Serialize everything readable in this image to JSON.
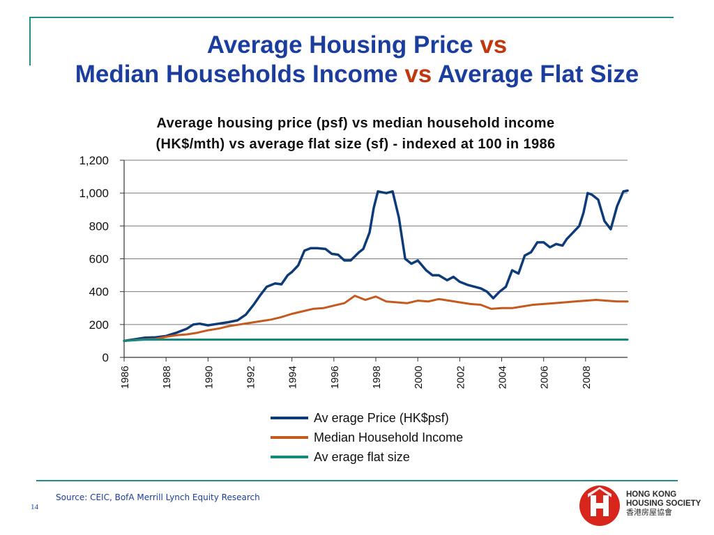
{
  "slide": {
    "title_part1": "Average Housing Price",
    "title_vs1": "vs",
    "title_part2": "Median Households Income",
    "title_vs2": "vs",
    "title_part3": "Average Flat Size",
    "page_number": "14",
    "source": "Source: CEIC, BofA Merrill Lynch Equity Research"
  },
  "logo": {
    "line1": "HONG KONG",
    "line2": "HOUSING SOCIETY",
    "line3": "香港房屋協會"
  },
  "colors": {
    "title_blue": "#1a3d9e",
    "vs_red": "#c0380f",
    "rule_teal": "#1f8f8a",
    "logo_red": "#d9261c"
  },
  "chart_data": {
    "type": "line",
    "title_line1": "Average housing price (psf) vs median household income",
    "title_line2": "(HK$/mth) vs average flat size (sf) - indexed at 100 in 1986",
    "ylim": [
      0,
      1200
    ],
    "yticks": [
      0,
      200,
      400,
      600,
      800,
      1000,
      1200
    ],
    "ytick_labels": [
      "0",
      "200",
      "400",
      "600",
      "800",
      "1,000",
      "1,200"
    ],
    "xlim": [
      1986,
      2010
    ],
    "xticks": [
      1986,
      1988,
      1990,
      1992,
      1994,
      1996,
      1998,
      2000,
      2002,
      2004,
      2006,
      2008
    ],
    "xtick_labels": [
      "1986",
      "1988",
      "1990",
      "1992",
      "1994",
      "1996",
      "1998",
      "2000",
      "2002",
      "2004",
      "2006",
      "2008"
    ],
    "grid": "horizontal",
    "legend_position": "bottom",
    "series": [
      {
        "name": "Av erage Price (HK$psf)",
        "color": "#0d3b78",
        "x": [
          1986.0,
          1986.5,
          1987.0,
          1987.5,
          1988.0,
          1988.5,
          1989.0,
          1989.3,
          1989.6,
          1990.0,
          1990.5,
          1991.0,
          1991.4,
          1991.8,
          1992.2,
          1992.5,
          1992.8,
          1993.2,
          1993.5,
          1993.8,
          1994.0,
          1994.3,
          1994.6,
          1994.9,
          1995.2,
          1995.6,
          1995.9,
          1996.2,
          1996.5,
          1996.8,
          1997.2,
          1997.4,
          1997.7,
          1997.9,
          1998.1,
          1998.5,
          1998.8,
          1999.1,
          1999.4,
          1999.7,
          2000.0,
          2000.4,
          2000.7,
          2001.0,
          2001.4,
          2001.7,
          2002.0,
          2002.4,
          2002.7,
          2003.0,
          2003.3,
          2003.6,
          2003.9,
          2004.2,
          2004.5,
          2004.8,
          2005.1,
          2005.4,
          2005.7,
          2006.0,
          2006.3,
          2006.6,
          2006.9,
          2007.1,
          2007.4,
          2007.7,
          2007.9,
          2008.1,
          2008.3,
          2008.6,
          2008.9,
          2009.2,
          2009.5,
          2009.8,
          2010.0
        ],
        "values": [
          100,
          110,
          120,
          122,
          130,
          150,
          175,
          200,
          205,
          195,
          205,
          215,
          225,
          260,
          325,
          380,
          430,
          450,
          445,
          500,
          520,
          560,
          650,
          665,
          665,
          660,
          630,
          625,
          590,
          590,
          640,
          660,
          760,
          910,
          1010,
          1000,
          1010,
          850,
          600,
          570,
          590,
          530,
          500,
          500,
          470,
          490,
          460,
          440,
          430,
          420,
          400,
          360,
          400,
          430,
          530,
          510,
          620,
          640,
          700,
          700,
          670,
          690,
          680,
          720,
          760,
          800,
          880,
          1000,
          990,
          960,
          830,
          780,
          920,
          1010,
          1015
        ]
      },
      {
        "name": "Median Household Income",
        "color": "#c55a1f",
        "x": [
          1986.0,
          1986.5,
          1987.0,
          1987.5,
          1988.0,
          1988.5,
          1989.0,
          1989.5,
          1990.0,
          1990.5,
          1991.0,
          1991.5,
          1992.0,
          1992.5,
          1993.0,
          1993.5,
          1994.0,
          1994.5,
          1995.0,
          1995.5,
          1996.0,
          1996.5,
          1997.0,
          1997.5,
          1998.0,
          1998.5,
          1999.0,
          1999.5,
          2000.0,
          2000.5,
          2001.0,
          2001.5,
          2002.0,
          2002.5,
          2003.0,
          2003.5,
          2004.0,
          2004.5,
          2005.0,
          2005.5,
          2006.0,
          2006.5,
          2007.0,
          2007.5,
          2008.0,
          2008.5,
          2009.0,
          2009.5,
          2010.0
        ],
        "values": [
          100,
          105,
          110,
          112,
          125,
          135,
          140,
          150,
          165,
          175,
          190,
          200,
          210,
          220,
          230,
          245,
          265,
          280,
          295,
          300,
          315,
          330,
          375,
          350,
          370,
          340,
          335,
          330,
          345,
          340,
          355,
          345,
          335,
          325,
          320,
          295,
          300,
          300,
          310,
          320,
          325,
          330,
          335,
          340,
          345,
          350,
          345,
          340,
          340
        ]
      },
      {
        "name": "Av erage flat size",
        "color": "#15897c",
        "x": [
          1986.0,
          1987.0,
          2010.0
        ],
        "values": [
          100,
          108,
          108
        ]
      }
    ]
  }
}
